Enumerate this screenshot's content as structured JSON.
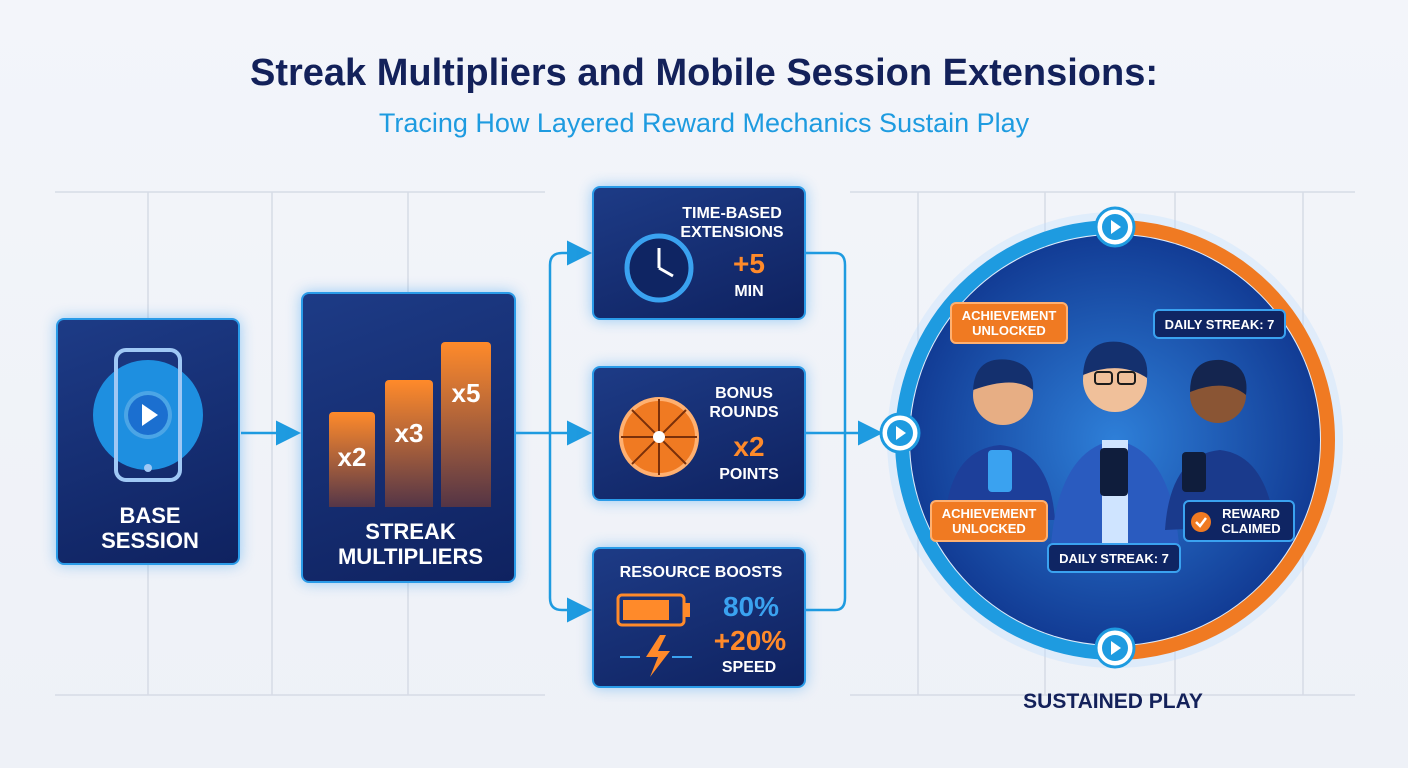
{
  "header": {
    "title": "Streak Multipliers and Mobile Session Extensions:",
    "subtitle": "Tracing How Layered Reward Mechanics Sustain Play"
  },
  "stages": {
    "base": {
      "label": "BASE SESSION"
    },
    "streak": {
      "label": "STREAK MULTIPLIERS",
      "multipliers": [
        "x2",
        "x3",
        "x5"
      ]
    },
    "extensions": [
      {
        "title": "TIME-BASED EXTENSIONS",
        "value": "+5",
        "unit": "MIN"
      },
      {
        "title": "BONUS ROUNDS",
        "value": "x2",
        "unit": "POINTS"
      },
      {
        "title": "RESOURCE BOOSTS",
        "value": "80%",
        "value2": "+20%",
        "unit": "SPEED"
      }
    ],
    "outcome": {
      "label": "SUSTAINED PLAY",
      "badges": [
        "ACHIEVEMENT UNLOCKED",
        "DAILY STREAK: 7",
        "ACHIEVEMENT UNLOCKED",
        "DAILY STREAK: 7",
        "REWARD CLAIMED"
      ]
    }
  }
}
